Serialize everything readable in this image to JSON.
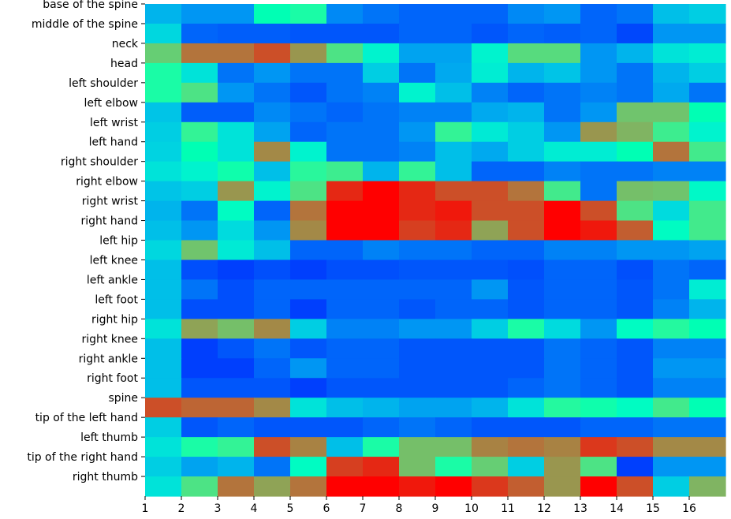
{
  "chart_data": {
    "type": "heatmap",
    "title": "",
    "xlabel": "",
    "ylabel": "",
    "x_categories": [
      "1",
      "2",
      "3",
      "4",
      "5",
      "6",
      "7",
      "8",
      "9",
      "10",
      "11",
      "12",
      "13",
      "14",
      "15",
      "16"
    ],
    "y_categories": [
      "base of the spine",
      "middle of the spine",
      "neck",
      "head",
      "left shoulder",
      "left elbow",
      "left wrist",
      "left hand",
      "right shoulder",
      "right elbow",
      "right wrist",
      "right hand",
      "left hip",
      "left knee",
      "left ankle",
      "left foot",
      "right hip",
      "right knee",
      "right ankle",
      "right foot",
      "spine",
      "tip of the left hand",
      "left thumb",
      "tip of the right hand",
      "right thumb"
    ],
    "colormap": "rainbow",
    "value_range": [
      0,
      1
    ],
    "values": [
      [
        0.25,
        0.2,
        0.2,
        0.5,
        0.55,
        0.18,
        0.15,
        0.13,
        0.13,
        0.13,
        0.18,
        0.2,
        0.13,
        0.15,
        0.27,
        0.3
      ],
      [
        0.32,
        0.13,
        0.12,
        0.12,
        0.11,
        0.11,
        0.11,
        0.13,
        0.13,
        0.11,
        0.13,
        0.12,
        0.13,
        0.09,
        0.2,
        0.2
      ],
      [
        0.7,
        0.85,
        0.85,
        0.9,
        0.8,
        0.65,
        0.4,
        0.22,
        0.22,
        0.4,
        0.67,
        0.67,
        0.2,
        0.25,
        0.35,
        0.38
      ],
      [
        0.55,
        0.35,
        0.15,
        0.2,
        0.15,
        0.15,
        0.3,
        0.15,
        0.23,
        0.38,
        0.25,
        0.28,
        0.2,
        0.15,
        0.25,
        0.3
      ],
      [
        0.55,
        0.65,
        0.2,
        0.15,
        0.11,
        0.15,
        0.17,
        0.4,
        0.27,
        0.17,
        0.13,
        0.15,
        0.17,
        0.15,
        0.23,
        0.15
      ],
      [
        0.28,
        0.12,
        0.12,
        0.18,
        0.15,
        0.13,
        0.15,
        0.17,
        0.17,
        0.23,
        0.25,
        0.15,
        0.2,
        0.72,
        0.72,
        0.5
      ],
      [
        0.3,
        0.6,
        0.35,
        0.22,
        0.13,
        0.15,
        0.15,
        0.2,
        0.6,
        0.37,
        0.3,
        0.2,
        0.8,
        0.75,
        0.62,
        0.4
      ],
      [
        0.31,
        0.5,
        0.35,
        0.82,
        0.4,
        0.15,
        0.15,
        0.17,
        0.27,
        0.23,
        0.3,
        0.38,
        0.38,
        0.5,
        0.85,
        0.63
      ],
      [
        0.35,
        0.4,
        0.53,
        0.27,
        0.58,
        0.62,
        0.25,
        0.6,
        0.27,
        0.13,
        0.13,
        0.17,
        0.15,
        0.15,
        0.17,
        0.17
      ],
      [
        0.28,
        0.3,
        0.8,
        0.4,
        0.65,
        0.95,
        1.0,
        0.95,
        0.9,
        0.9,
        0.85,
        0.63,
        0.15,
        0.73,
        0.72,
        0.43
      ],
      [
        0.25,
        0.15,
        0.45,
        0.13,
        0.85,
        1.0,
        1.0,
        0.95,
        0.97,
        0.9,
        0.9,
        1.0,
        0.9,
        0.65,
        0.33,
        0.63
      ],
      [
        0.27,
        0.2,
        0.33,
        0.2,
        0.82,
        1.0,
        1.0,
        0.92,
        0.95,
        0.78,
        0.9,
        1.0,
        0.97,
        0.88,
        0.45,
        0.63
      ],
      [
        0.32,
        0.72,
        0.37,
        0.27,
        0.13,
        0.13,
        0.17,
        0.15,
        0.15,
        0.13,
        0.13,
        0.17,
        0.17,
        0.2,
        0.2,
        0.22
      ],
      [
        0.27,
        0.1,
        0.08,
        0.1,
        0.08,
        0.1,
        0.1,
        0.11,
        0.11,
        0.11,
        0.1,
        0.13,
        0.13,
        0.1,
        0.15,
        0.13
      ],
      [
        0.27,
        0.15,
        0.1,
        0.13,
        0.13,
        0.13,
        0.13,
        0.13,
        0.13,
        0.2,
        0.11,
        0.13,
        0.13,
        0.11,
        0.15,
        0.38
      ],
      [
        0.27,
        0.1,
        0.1,
        0.13,
        0.08,
        0.13,
        0.13,
        0.11,
        0.13,
        0.13,
        0.11,
        0.13,
        0.13,
        0.11,
        0.17,
        0.25
      ],
      [
        0.35,
        0.78,
        0.73,
        0.82,
        0.3,
        0.17,
        0.17,
        0.2,
        0.2,
        0.3,
        0.55,
        0.33,
        0.2,
        0.45,
        0.57,
        0.5
      ],
      [
        0.27,
        0.08,
        0.11,
        0.15,
        0.11,
        0.13,
        0.13,
        0.11,
        0.11,
        0.11,
        0.11,
        0.15,
        0.13,
        0.11,
        0.17,
        0.17
      ],
      [
        0.27,
        0.08,
        0.08,
        0.13,
        0.2,
        0.13,
        0.13,
        0.11,
        0.11,
        0.11,
        0.11,
        0.15,
        0.13,
        0.11,
        0.2,
        0.2
      ],
      [
        0.27,
        0.11,
        0.11,
        0.11,
        0.08,
        0.11,
        0.11,
        0.11,
        0.11,
        0.11,
        0.13,
        0.15,
        0.13,
        0.11,
        0.17,
        0.17
      ],
      [
        0.9,
        0.87,
        0.87,
        0.82,
        0.35,
        0.27,
        0.25,
        0.22,
        0.22,
        0.25,
        0.35,
        0.57,
        0.53,
        0.45,
        0.63,
        0.5
      ],
      [
        0.3,
        0.11,
        0.13,
        0.11,
        0.11,
        0.11,
        0.13,
        0.15,
        0.13,
        0.11,
        0.11,
        0.11,
        0.13,
        0.13,
        0.15,
        0.15
      ],
      [
        0.35,
        0.55,
        0.6,
        0.9,
        0.83,
        0.27,
        0.55,
        0.73,
        0.73,
        0.83,
        0.85,
        0.83,
        0.93,
        0.9,
        0.82,
        0.82
      ],
      [
        0.3,
        0.22,
        0.25,
        0.15,
        0.45,
        0.92,
        0.95,
        0.73,
        0.55,
        0.7,
        0.3,
        0.8,
        0.65,
        0.08,
        0.2,
        0.2
      ],
      [
        0.35,
        0.65,
        0.85,
        0.78,
        0.85,
        1.0,
        1.0,
        0.97,
        1.0,
        0.93,
        0.88,
        0.8,
        1.0,
        0.9,
        0.3,
        0.75
      ]
    ]
  }
}
